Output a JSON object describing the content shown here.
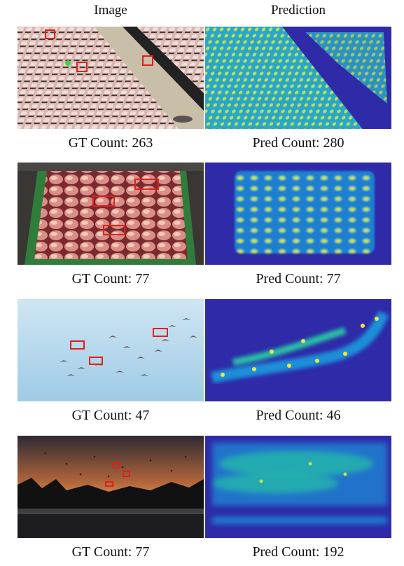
{
  "headers": {
    "image": "Image",
    "prediction": "Prediction"
  },
  "rows": [
    {
      "gt_caption": "GT Count: 263",
      "pred_caption": "Pred Count: 280"
    },
    {
      "gt_caption": "GT Count: 77",
      "pred_caption": "Pred Count: 77"
    },
    {
      "gt_caption": "GT Count: 47",
      "pred_caption": "Pred Count: 46"
    },
    {
      "gt_caption": "GT Count: 77",
      "pred_caption": "Pred Count: 192"
    }
  ],
  "colors": {
    "box": "#e0201c",
    "marker": "#3fd14a",
    "density_bg": "#2e2aa8",
    "density_low": "#1f8fd8",
    "density_mid": "#27c2a6",
    "density_high": "#f3e53a"
  }
}
